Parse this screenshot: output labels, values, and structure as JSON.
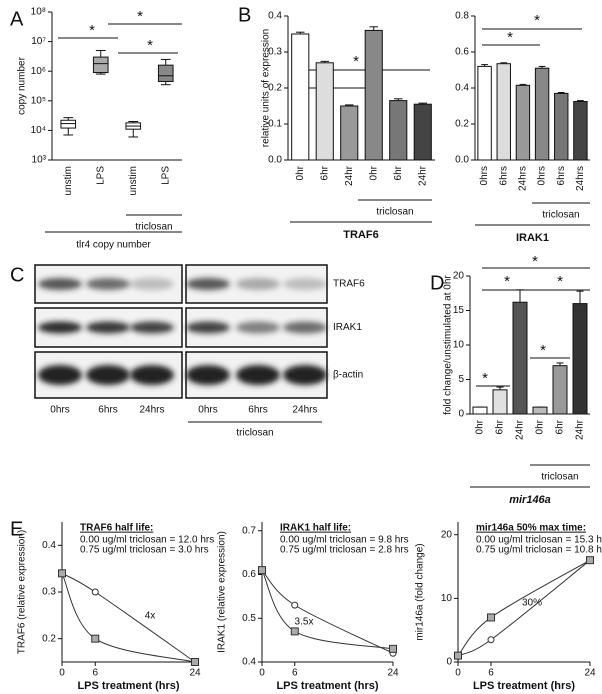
{
  "chart_data": [
    {
      "type": "box",
      "panel": "A",
      "ylabel": "copy number",
      "xlabel": "tlr4 copy number",
      "group_label": "triclosan",
      "categories": [
        "unstim",
        "LPS",
        "unstim",
        "LPS"
      ],
      "min": [
        7000,
        800000,
        6000,
        350000
      ],
      "q1": [
        12000,
        900000,
        11000,
        450000
      ],
      "median": [
        17000,
        1800000,
        14000,
        700000
      ],
      "q3": [
        22000,
        3000000,
        18000,
        1600000
      ],
      "max": [
        27000,
        5000000,
        20000,
        2500000
      ],
      "colors": [
        "#ffffff",
        "#aaaaaa",
        "#ffffff",
        "#888888"
      ],
      "log_y": true,
      "ylim": [
        1000,
        100000000
      ],
      "yticks": [
        {
          "value": 1000,
          "label": "10³"
        },
        {
          "value": 10000,
          "label": "10⁴"
        },
        {
          "value": 100000,
          "label": "10⁵"
        },
        {
          "value": 1000000,
          "label": "10⁶"
        },
        {
          "value": 10000000,
          "label": "10⁷"
        },
        {
          "value": 100000000,
          "label": "10⁸"
        }
      ],
      "annotations": [
        "*",
        "*",
        "*"
      ]
    },
    {
      "type": "bar",
      "panel": "B",
      "ylabel": "relative units of expression",
      "xlabel": "TRAF6",
      "group_label": "triclosan",
      "categories": [
        "0hr",
        "6hr",
        "24hr",
        "0hr",
        "6hr",
        "24hr"
      ],
      "values": [
        0.35,
        0.27,
        0.15,
        0.36,
        0.165,
        0.155
      ],
      "errors": [
        0.005,
        0.004,
        0.003,
        0.01,
        0.005,
        0.003
      ],
      "colors": [
        "#ffffff",
        "#dddddd",
        "#999999",
        "#888888",
        "#777777",
        "#444444"
      ],
      "ylim": [
        0,
        0.4
      ],
      "yticks": [
        {
          "value": 0,
          "label": "0.0"
        },
        0.1,
        0.2,
        0.3,
        0.4
      ],
      "annotations": [
        "*",
        "*"
      ]
    },
    {
      "type": "bar",
      "xlabel": "IRAK1",
      "group_label": "triclosan",
      "categories": [
        "0hrs",
        "6hrs",
        "24hrs",
        "0hrs",
        "6hrs",
        "24hrs"
      ],
      "values": [
        0.52,
        0.535,
        0.415,
        0.51,
        0.37,
        0.325
      ],
      "errors": [
        0.01,
        0.005,
        0.005,
        0.01,
        0.005,
        0.005
      ],
      "colors": [
        "#ffffff",
        "#dddddd",
        "#999999",
        "#888888",
        "#777777",
        "#444444"
      ],
      "ylim": [
        0,
        0.8
      ],
      "yticks": [
        {
          "value": 0,
          "label": "0.0"
        },
        0.2,
        0.4,
        0.6,
        0.8
      ],
      "annotations": [
        "*",
        "*"
      ]
    },
    {
      "type": "bar",
      "panel": "D",
      "ylabel": "fold change/unstimulated at 0hr",
      "xlabel": "mir146a",
      "group_label": "triclosan",
      "categories": [
        "0hr",
        "6hr",
        "24hr",
        "0hr",
        "6hr",
        "24hr"
      ],
      "values": [
        1,
        3.5,
        16.2,
        1,
        7,
        16
      ],
      "errors": [
        0,
        0.4,
        1.8,
        0,
        0.4,
        1.8
      ],
      "colors": [
        "#ffffff",
        "#e0e0e0",
        "#555555",
        "#bbbbbb",
        "#999999",
        "#333333"
      ],
      "ylim": [
        0,
        20
      ],
      "yticks": [
        0,
        5,
        10,
        15,
        20
      ],
      "annotations": [
        "*",
        "*",
        "*",
        "*",
        "*"
      ]
    },
    {
      "type": "line",
      "panel": "E",
      "ylabel": "TRAF6 (relative expression)",
      "xlabel": "LPS treatment (hrs)",
      "subtitle": "TRAF6 half life:",
      "x": [
        0,
        6,
        24
      ],
      "xlim": [
        0,
        24
      ],
      "xticks": [
        0,
        6,
        24
      ],
      "series": [
        {
          "name": "0.00 ug/ml triclosan = 12.0 hrs",
          "color": "#333333",
          "values": [
            0.34,
            0.3,
            0.15
          ]
        },
        {
          "name": "0.75 ug/ml triclosan = 3.0 hrs",
          "color": "#333333",
          "values": [
            0.34,
            0.2,
            0.15
          ]
        }
      ],
      "ylim": [
        0.15,
        0.45
      ],
      "yticks": [
        0.2,
        0.3,
        0.4
      ],
      "annotations": [
        "4x"
      ]
    },
    {
      "type": "line",
      "ylabel": "IRAK1 (relative expression)",
      "xlabel": "LPS treatment (hrs)",
      "subtitle": "IRAK1 half life:",
      "x": [
        0,
        6,
        24
      ],
      "xlim": [
        0,
        24
      ],
      "xticks": [
        0,
        6,
        24
      ],
      "series": [
        {
          "name": "0.00 ug/ml triclosan = 9.8 hrs",
          "color": "#333333",
          "values": [
            0.61,
            0.53,
            0.42
          ]
        },
        {
          "name": "0.75 ug/ml triclosan = 2.8 hrs",
          "color": "#333333",
          "values": [
            0.61,
            0.47,
            0.43
          ]
        }
      ],
      "ylim": [
        0.4,
        0.72
      ],
      "yticks": [
        0.4,
        0.5,
        0.6,
        0.7
      ],
      "annotations": [
        "3.5x"
      ]
    },
    {
      "type": "line",
      "ylabel": "mir146a (fold change)",
      "xlabel": "LPS treatment (hrs)",
      "subtitle": "mir146a 50% max time:",
      "x": [
        0,
        6,
        24
      ],
      "xlim": [
        0,
        24
      ],
      "xticks": [
        0,
        6,
        24
      ],
      "series": [
        {
          "name": "0.00 ug/ml triclosan = 15.3 hrs",
          "color": "#333333",
          "values": [
            1,
            3.5,
            16
          ]
        },
        {
          "name": "0.75 ug/ml triclosan = 10.8 hrs",
          "color": "#333333",
          "values": [
            1,
            7,
            16
          ]
        }
      ],
      "ylim": [
        0,
        22
      ],
      "yticks": [
        0,
        10,
        20
      ],
      "annotations": [
        "30%"
      ]
    }
  ],
  "blot": {
    "panel": "C",
    "rows": [
      "TRAF6",
      "IRAK1",
      "β-actin"
    ],
    "lanes": [
      "0hrs",
      "6hrs",
      "24hrs",
      "0hrs",
      "6hrs",
      "24hrs"
    ],
    "group_label": "triclosan"
  }
}
